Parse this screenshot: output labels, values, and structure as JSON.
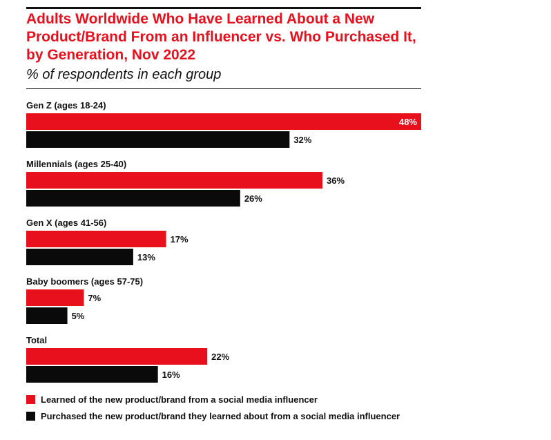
{
  "header": {
    "title": "Adults Worldwide Who Have Learned About a New Product/Brand From an Influencer vs. Who Purchased It, by Generation, Nov 2022",
    "subtitle": "% of respondents in each group"
  },
  "colors": {
    "learned": "#e8101d",
    "purchased": "#0a0a0a"
  },
  "chart_data": {
    "type": "bar",
    "orientation": "horizontal",
    "title": "Adults Worldwide Who Have Learned About a New Product/Brand From an Influencer vs. Who Purchased It, by Generation, Nov 2022",
    "subtitle": "% of respondents in each group",
    "categories": [
      "Gen Z (ages 18-24)",
      "Millennials (ages 25-40)",
      "Gen X (ages 41-56)",
      "Baby boomers (ages 57-75)",
      "Total"
    ],
    "series": [
      {
        "name": "Learned of the new product/brand from a social media influencer",
        "values": [
          48,
          36,
          17,
          7,
          22
        ],
        "labels": [
          "48%",
          "36%",
          "17%",
          "7%",
          "22%"
        ]
      },
      {
        "name": "Purchased the new product/brand they learned about from a social media influencer",
        "values": [
          32,
          26,
          13,
          5,
          16
        ],
        "labels": [
          "32%",
          "26%",
          "13%",
          "5%",
          "16%"
        ]
      }
    ],
    "xlim": [
      0,
      48
    ],
    "grid": false,
    "legend_position": "bottom"
  }
}
